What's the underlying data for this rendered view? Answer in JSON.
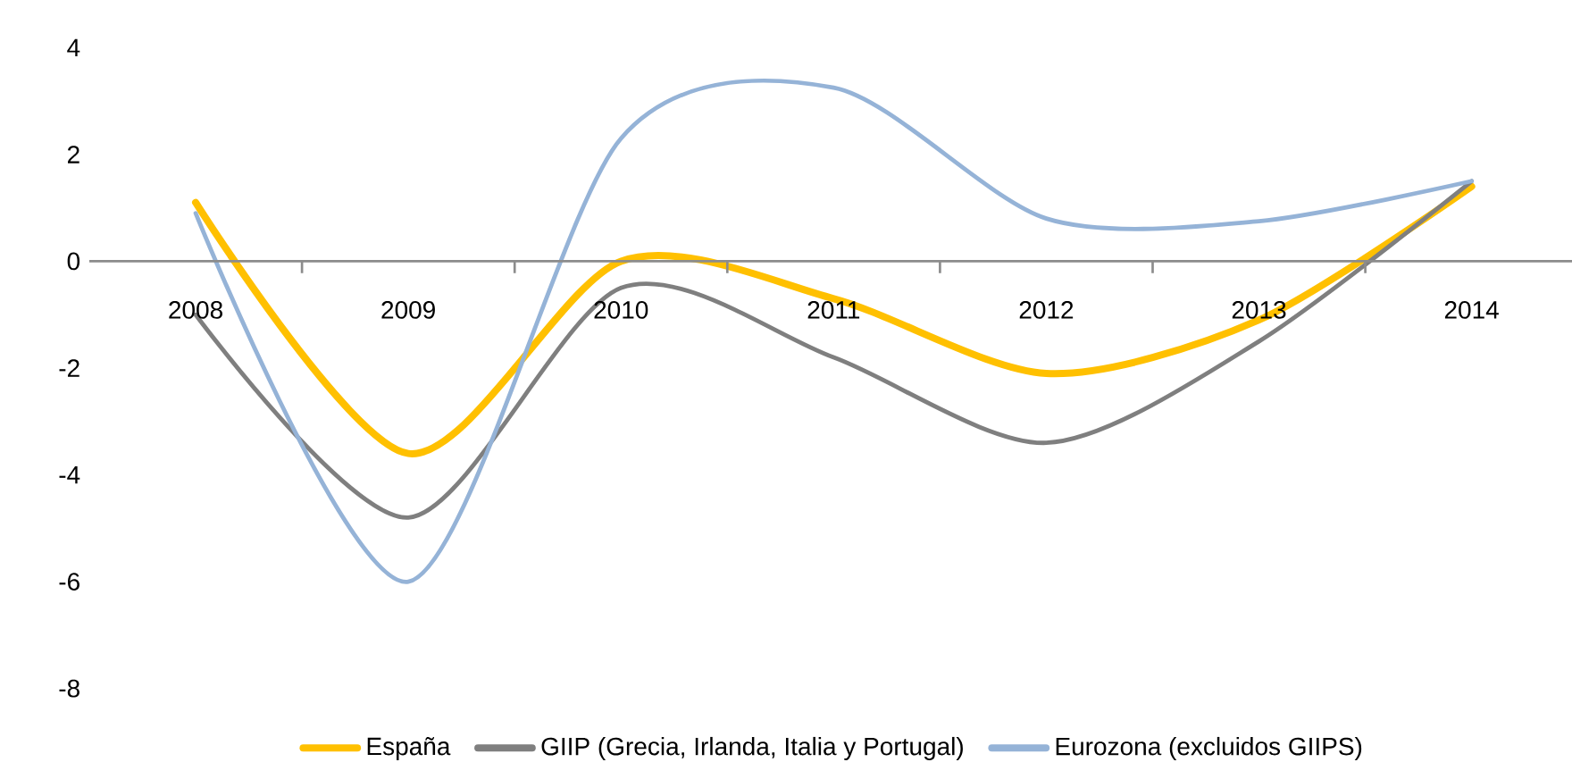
{
  "chart_data": {
    "type": "line",
    "categories": [
      "2008",
      "2009",
      "2010",
      "2011",
      "2012",
      "2013",
      "2014"
    ],
    "series": [
      {
        "name": "España",
        "color": "#ffc000",
        "values": [
          1.1,
          -3.6,
          0.0,
          -0.7,
          -2.1,
          -1.1,
          1.4
        ]
      },
      {
        "name": "GIIP (Grecia, Irlanda, Italia y Portugal)",
        "color": "#7f7f7f",
        "values": [
          -1.0,
          -4.8,
          -0.5,
          -1.8,
          -3.4,
          -1.5,
          1.5
        ]
      },
      {
        "name": "Eurozona (excluidos GIIPS)",
        "color": "#95b3d7",
        "values": [
          0.9,
          -6.0,
          2.3,
          3.25,
          0.8,
          0.75,
          1.5
        ]
      }
    ],
    "ylim": [
      -8,
      4
    ],
    "yticks": [
      -8,
      -6,
      -4,
      -2,
      0,
      2,
      4
    ],
    "grid": false,
    "legend": "bottom",
    "marker": "none",
    "line_style": "solid"
  }
}
